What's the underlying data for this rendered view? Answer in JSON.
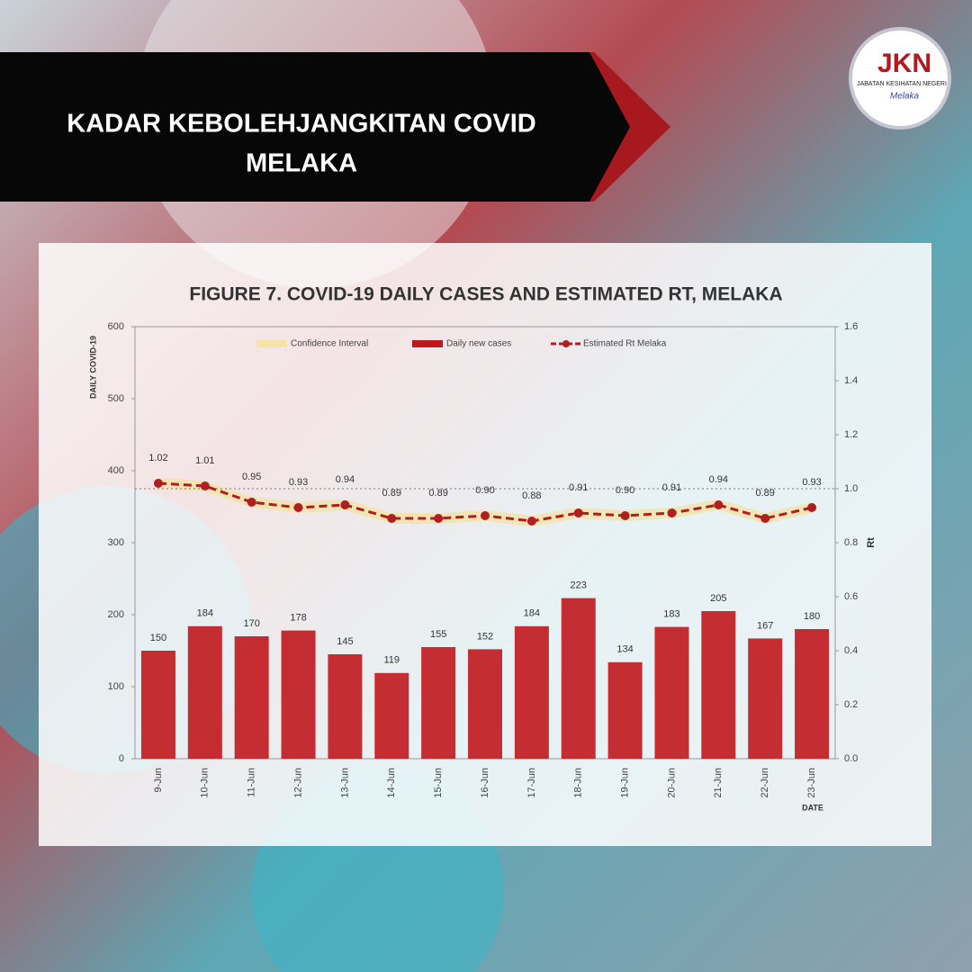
{
  "header": {
    "title_lines": [
      "KADAR KEBOLEHJANGKITAN COVID",
      "MELAKA"
    ]
  },
  "logo": {
    "initials": "JKN",
    "org": "JABATAN KESIHATAN NEGERI",
    "state": "Melaka"
  },
  "chart_data": {
    "type": "bar",
    "title": "FIGURE 7. COVID-19 DAILY CASES AND ESTIMATED RT, MELAKA",
    "y_label": "DAILY COVID-19",
    "y2_label": "Rt",
    "x_label": "DATE",
    "categories": [
      "9-Jun",
      "10-Jun",
      "11-Jun",
      "12-Jun",
      "13-Jun",
      "14-Jun",
      "15-Jun",
      "16-Jun",
      "17-Jun",
      "18-Jun",
      "19-Jun",
      "20-Jun",
      "21-Jun",
      "22-Jun",
      "23-Jun"
    ],
    "series": [
      {
        "name": "Daily new cases",
        "color": "#c0171c",
        "values": [
          150,
          184,
          170,
          178,
          145,
          119,
          155,
          152,
          184,
          223,
          134,
          183,
          205,
          167,
          180
        ]
      },
      {
        "name": "Estimated Rt Melaka",
        "color": "#b01e23",
        "axis": "y2",
        "type": "line",
        "values": [
          1.02,
          1.01,
          0.95,
          0.93,
          0.94,
          0.89,
          0.89,
          0.9,
          0.88,
          0.91,
          0.9,
          0.91,
          0.94,
          0.89,
          0.93
        ],
        "value_labels": [
          "1.02",
          "1.01",
          "0.95",
          "0.93",
          "0.94",
          "0.89",
          "0.89",
          "0.90",
          "0.88",
          "0.91",
          "0.90",
          "0.91",
          "0.94",
          "0.89",
          "0.93"
        ]
      }
    ],
    "confidence_interval": {
      "name": "Confidence Interval",
      "color": "#f3e3a6",
      "lower": [
        1.0,
        0.99,
        0.93,
        0.91,
        0.92,
        0.87,
        0.87,
        0.88,
        0.86,
        0.89,
        0.88,
        0.89,
        0.92,
        0.87,
        0.91
      ],
      "upper": [
        1.04,
        1.03,
        0.97,
        0.95,
        0.96,
        0.91,
        0.91,
        0.92,
        0.9,
        0.93,
        0.92,
        0.93,
        0.96,
        0.91,
        0.95
      ]
    },
    "y2_reference": 1,
    "ylim": [
      0,
      600
    ],
    "yticks": [
      0,
      100,
      200,
      300,
      400,
      500,
      600
    ],
    "y2lim": [
      0,
      1.6
    ],
    "y2ticks": [
      {
        "value": 0,
        "label": "0.0"
      },
      0.2,
      0.4,
      0.6,
      0.8,
      {
        "value": 1,
        "label": "1.0"
      },
      1.2,
      1.4,
      1.6
    ],
    "legend": "top"
  }
}
